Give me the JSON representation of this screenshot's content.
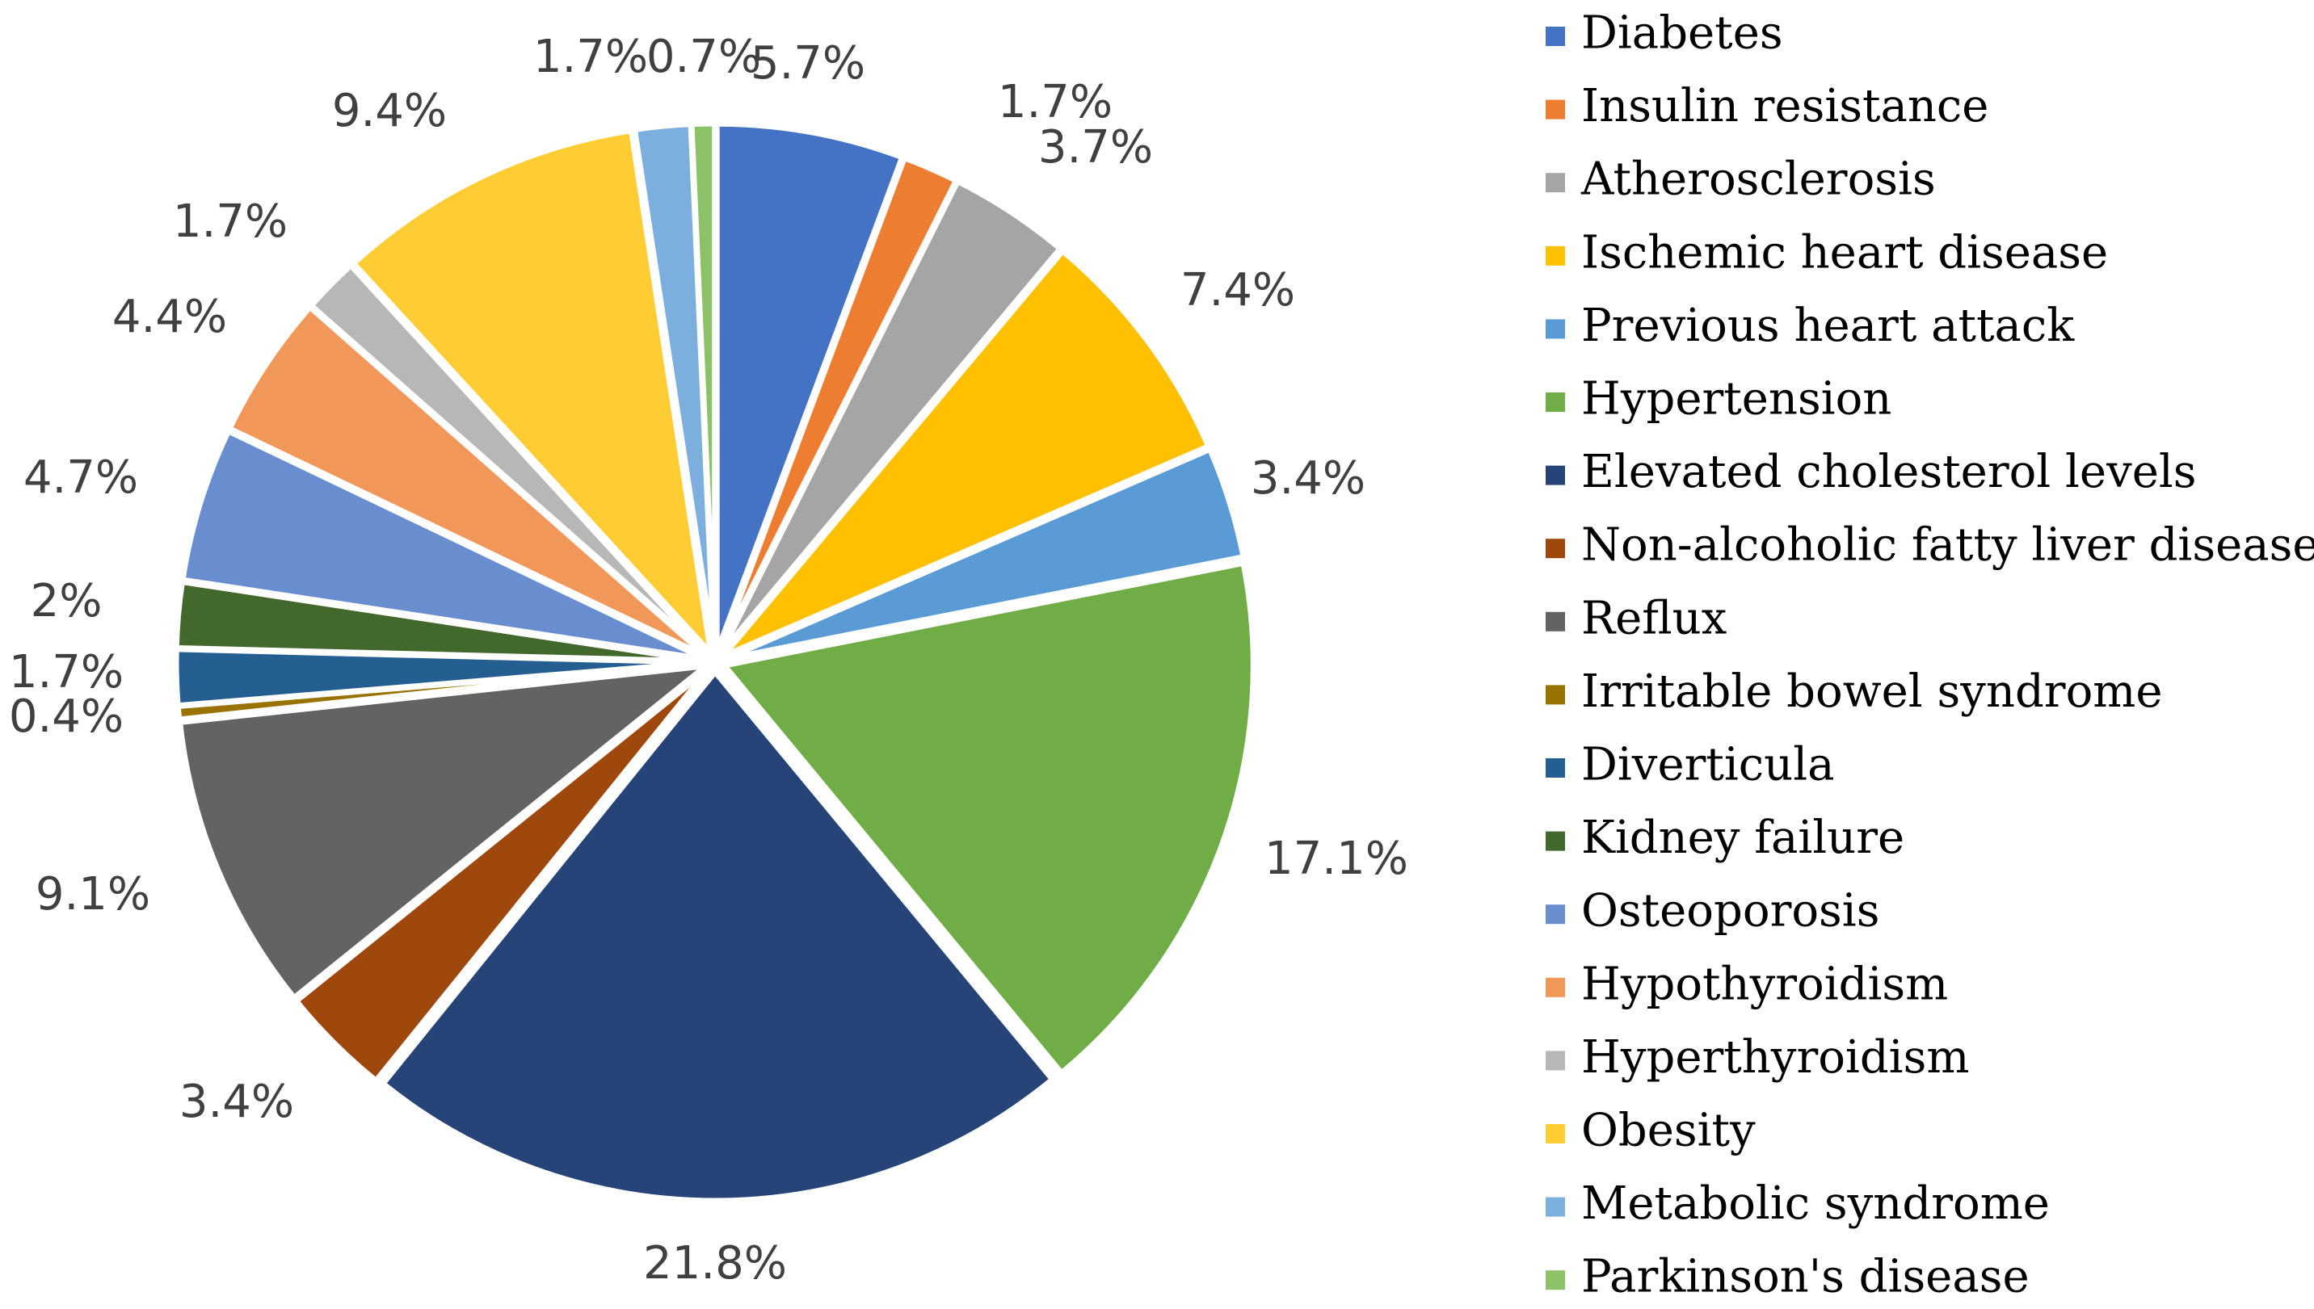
{
  "chart_data": {
    "type": "pie",
    "title": "",
    "legend_position": "right",
    "slices": [
      {
        "label": "Diabetes",
        "value": 5.7,
        "value_label": "5.7%",
        "color": "#4472C4"
      },
      {
        "label": "Insulin resistance",
        "value": 1.7,
        "value_label": "1.7%",
        "color": "#ED7D31"
      },
      {
        "label": "Atherosclerosis",
        "value": 3.7,
        "value_label": "3.7%",
        "color": "#A5A5A5"
      },
      {
        "label": "Ischemic heart disease",
        "value": 7.4,
        "value_label": "7.4%",
        "color": "#FFC000"
      },
      {
        "label": "Previous heart attack",
        "value": 3.4,
        "value_label": "3.4%",
        "color": "#5B9BD5"
      },
      {
        "label": "Hypertension",
        "value": 17.1,
        "value_label": "17.1%",
        "color": "#70AD47"
      },
      {
        "label": "Elevated cholesterol levels",
        "value": 21.8,
        "value_label": "21.8%",
        "color": "#264478"
      },
      {
        "label": "Non-alcoholic fatty liver disease",
        "value": 3.4,
        "value_label": "3.4%",
        "color": "#9E480E"
      },
      {
        "label": "Reflux",
        "value": 9.1,
        "value_label": "9.1%",
        "color": "#636363"
      },
      {
        "label": "Irritable bowel syndrome",
        "value": 0.4,
        "value_label": "0.4%",
        "color": "#997300"
      },
      {
        "label": "Diverticula",
        "value": 1.7,
        "value_label": "1.7%",
        "color": "#255E91"
      },
      {
        "label": "Kidney failure",
        "value": 2,
        "value_label": "2%",
        "color": "#43682B"
      },
      {
        "label": "Osteoporosis",
        "value": 4.7,
        "value_label": "4.7%",
        "color": "#698ED0"
      },
      {
        "label": "Hypothyroidism",
        "value": 4.4,
        "value_label": "4.4%",
        "color": "#F1975A"
      },
      {
        "label": "Hyperthyroidism",
        "value": 1.7,
        "value_label": "1.7%",
        "color": "#B7B7B7"
      },
      {
        "label": "Obesity",
        "value": 9.4,
        "value_label": "9.4%",
        "color": "#FFCD33"
      },
      {
        "label": "Metabolic syndrome",
        "value": 1.7,
        "value_label": "1.7%",
        "color": "#7CAFDD"
      },
      {
        "label": "Parkinson's disease",
        "value": 0.7,
        "value_label": "0.7%",
        "color": "#8CC168"
      }
    ]
  }
}
